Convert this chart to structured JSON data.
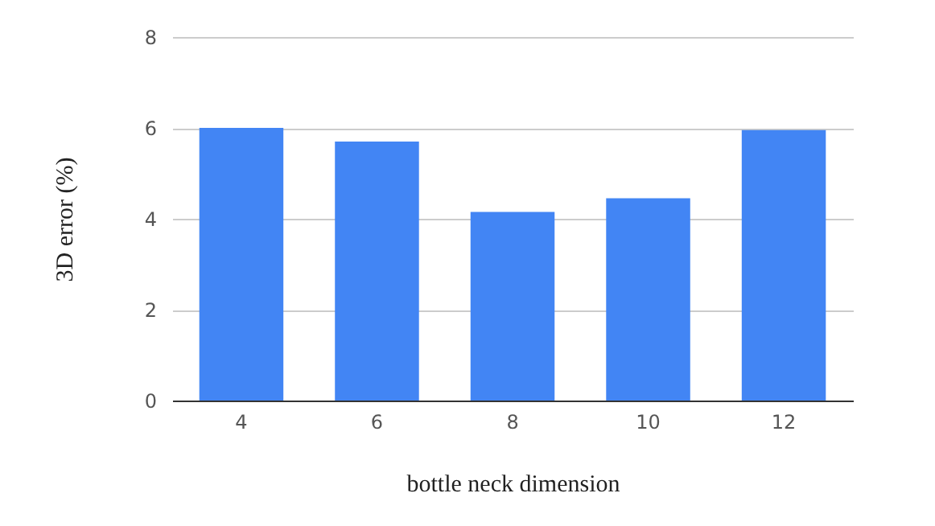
{
  "chart_data": {
    "type": "bar",
    "xlabel": "bottle neck dimension",
    "ylabel": "3D error (%)",
    "categories": [
      "4",
      "6",
      "8",
      "10",
      "12"
    ],
    "values": [
      6.0,
      5.7,
      4.15,
      4.45,
      5.95
    ],
    "color": "#4285f4",
    "ylim": [
      0,
      8
    ],
    "yticks": [
      0,
      2,
      4,
      6,
      8
    ],
    "grid": "y"
  }
}
